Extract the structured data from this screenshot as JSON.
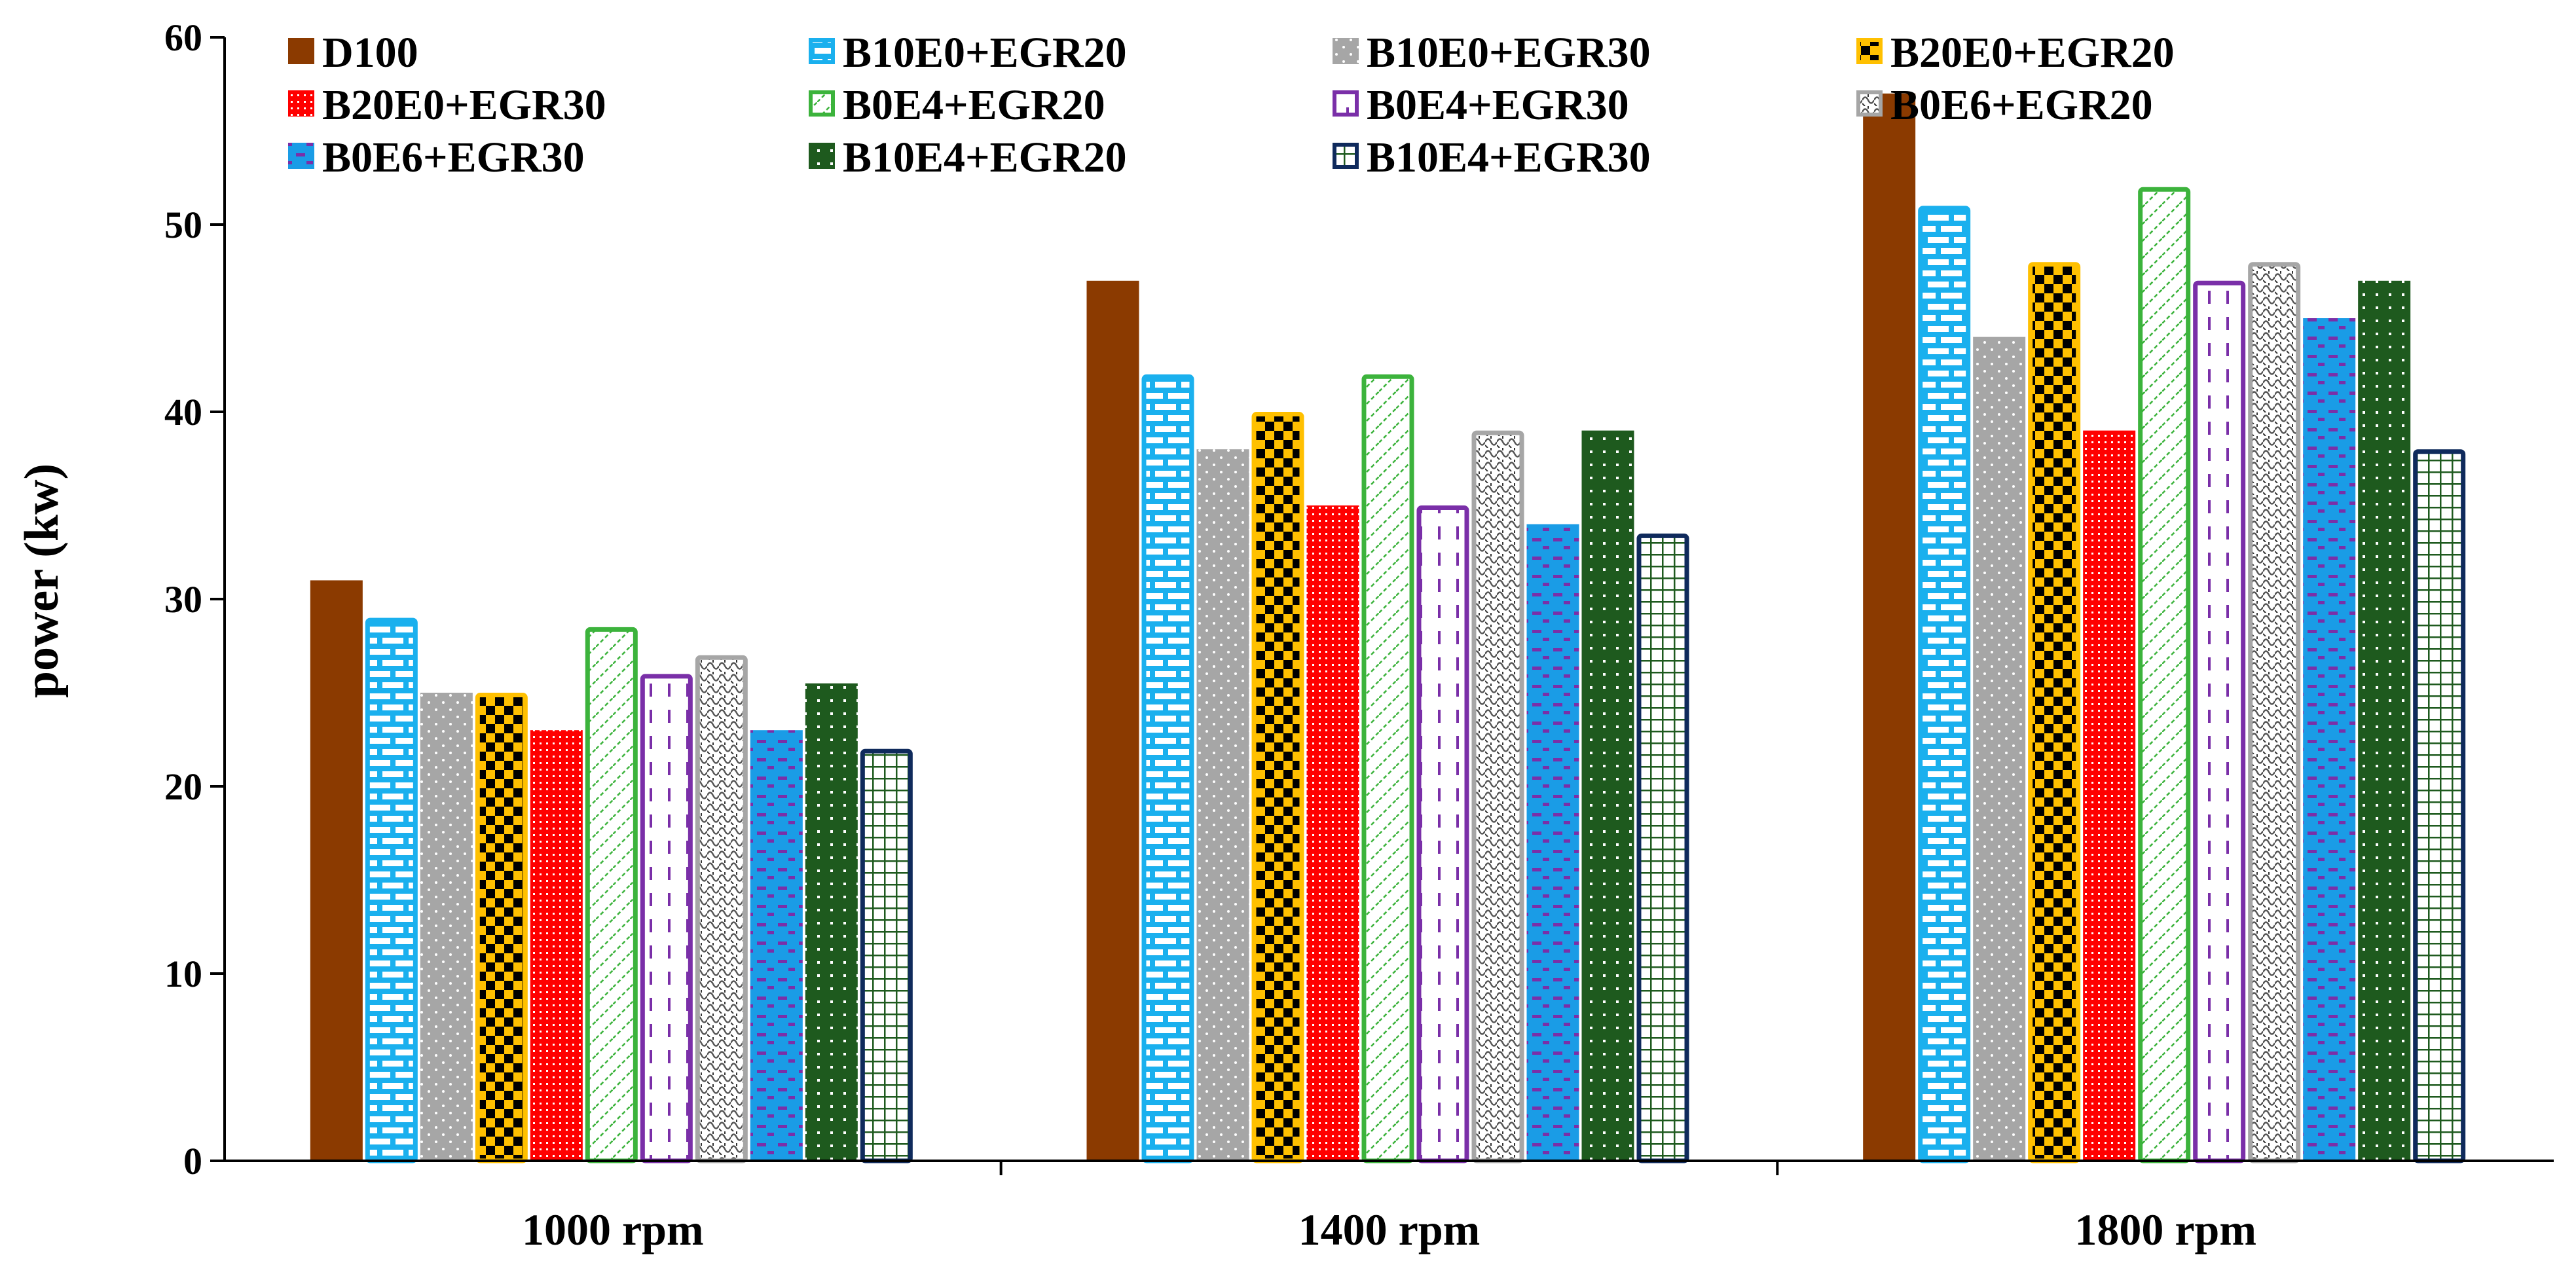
{
  "chart_data": {
    "type": "bar",
    "title": "",
    "xlabel": "",
    "ylabel": "power (kw)",
    "ylim": [
      0,
      60
    ],
    "yticks": [
      0,
      10,
      20,
      30,
      40,
      50,
      60
    ],
    "grid": false,
    "legend_position": "top",
    "categories": [
      "1000 rpm",
      "1400 rpm",
      "1800 rpm"
    ],
    "series": [
      {
        "name": "D100",
        "values": [
          31,
          47,
          57
        ],
        "color": "#8B3A00",
        "pattern": "solid"
      },
      {
        "name": "B10E0+EGR20",
        "values": [
          29,
          42,
          51
        ],
        "color": "#1AB0EE",
        "pattern": "brick"
      },
      {
        "name": "B10E0+EGR30",
        "values": [
          25,
          38,
          44
        ],
        "color": "#A6A6A6",
        "pattern": "dots"
      },
      {
        "name": "B20E0+EGR20",
        "values": [
          25,
          40,
          48
        ],
        "color": "#FFC000",
        "pattern": "checker"
      },
      {
        "name": "B20E0+EGR30",
        "values": [
          23,
          35,
          39
        ],
        "color": "#FF0000",
        "pattern": "grid-fine"
      },
      {
        "name": "B0E4+EGR20",
        "values": [
          28.5,
          42,
          52
        ],
        "color": "#3CB33C",
        "pattern": "diagonal"
      },
      {
        "name": "B0E4+EGR30",
        "values": [
          26,
          35,
          47
        ],
        "color": "#7A2FA8",
        "pattern": "dashes"
      },
      {
        "name": "B0E6+EGR20",
        "values": [
          27,
          39,
          48
        ],
        "color": "#A6A6A6",
        "pattern": "weave"
      },
      {
        "name": "B0E6+EGR30",
        "values": [
          23,
          34,
          45
        ],
        "color": "#1A9CE6",
        "pattern": "stripes-purple"
      },
      {
        "name": "B10E4+EGR20",
        "values": [
          25.5,
          39,
          47
        ],
        "color": "#1E5A1E",
        "pattern": "dots-white"
      },
      {
        "name": "B10E4+EGR30",
        "values": [
          22,
          33.5,
          38
        ],
        "color": "#0F2A5C",
        "pattern": "grid-green"
      }
    ]
  }
}
